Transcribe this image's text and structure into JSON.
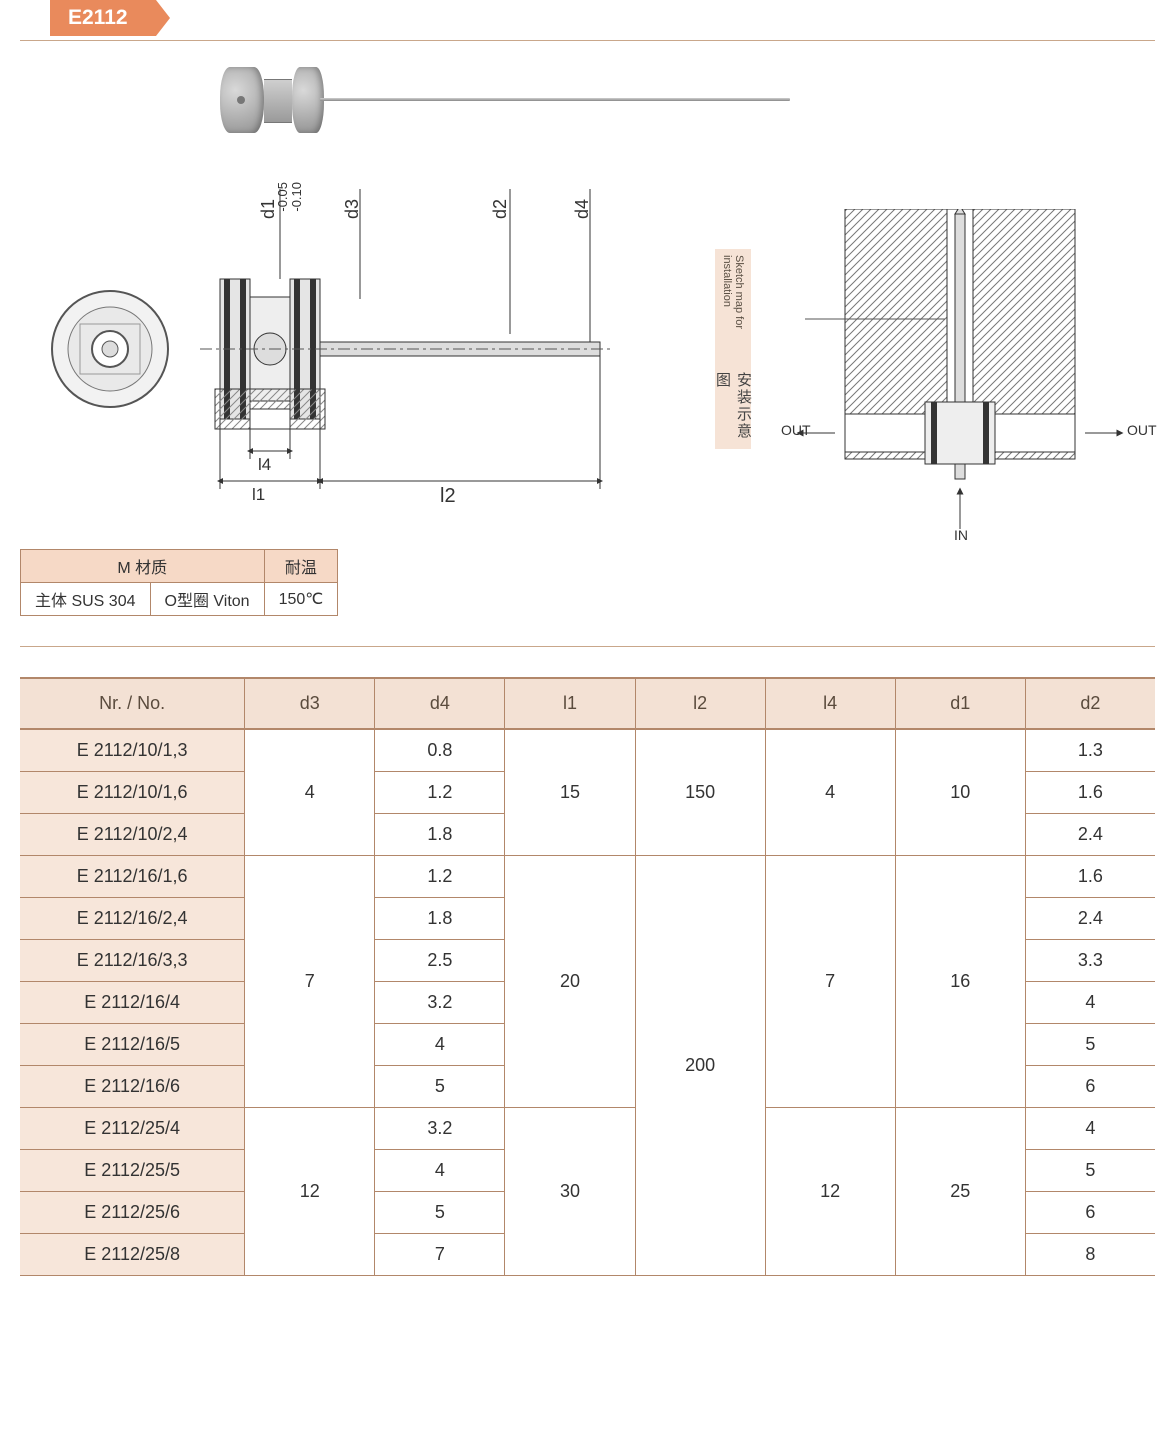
{
  "header": {
    "code": "E2112"
  },
  "dim_labels": {
    "d1": "d1",
    "d1_tol_top": "-0.05",
    "d1_tol_bot": "-0.10",
    "d2": "d2",
    "d3": "d3",
    "d4": "d4",
    "l1": "l1",
    "l2": "l2",
    "l4": "l4"
  },
  "sketch": {
    "title_cn": "安装示意图",
    "title_en": "Sketch map for installation",
    "out": "OUT",
    "in": "IN"
  },
  "material_table": {
    "hdr_material": "M 材质",
    "hdr_temp": "耐温",
    "body_label": "主体 SUS 304",
    "oring_label": "O型圈 Viton",
    "temp_value": "150℃"
  },
  "main_table": {
    "columns": [
      "Nr. / No.",
      "d3",
      "d4",
      "l1",
      "l2",
      "l4",
      "d1",
      "d2"
    ],
    "col_widths": [
      "200px",
      "110px",
      "110px",
      "110px",
      "110px",
      "110px",
      "110px",
      "110px"
    ],
    "groups": [
      {
        "d3": "4",
        "l1": "15",
        "l2": "150",
        "l4": "4",
        "d1": "10",
        "rows": [
          {
            "no": "E 2112/10/1,3",
            "d4": "0.8",
            "d2": "1.3"
          },
          {
            "no": "E 2112/10/1,6",
            "d4": "1.2",
            "d2": "1.6"
          },
          {
            "no": "E 2112/10/2,4",
            "d4": "1.8",
            "d2": "2.4"
          }
        ]
      },
      {
        "d3": "7",
        "l1": "20",
        "l2": "200",
        "l2_span_extra": 4,
        "l4": "7",
        "d1": "16",
        "rows": [
          {
            "no": "E 2112/16/1,6",
            "d4": "1.2",
            "d2": "1.6"
          },
          {
            "no": "E 2112/16/2,4",
            "d4": "1.8",
            "d2": "2.4"
          },
          {
            "no": "E 2112/16/3,3",
            "d4": "2.5",
            "d2": "3.3"
          },
          {
            "no": "E 2112/16/4",
            "d4": "3.2",
            "d2": "4"
          },
          {
            "no": "E 2112/16/5",
            "d4": "4",
            "d2": "5"
          },
          {
            "no": "E 2112/16/6",
            "d4": "5",
            "d2": "6"
          }
        ]
      },
      {
        "d3": "12",
        "l1": "30",
        "l2": null,
        "l4": "12",
        "d1": "25",
        "rows": [
          {
            "no": "E 2112/25/4",
            "d4": "3.2",
            "d2": "4"
          },
          {
            "no": "E 2112/25/5",
            "d4": "4",
            "d2": "5"
          },
          {
            "no": "E 2112/25/6",
            "d4": "5",
            "d2": "6"
          },
          {
            "no": "E 2112/25/8",
            "d4": "7",
            "d2": "8"
          }
        ]
      }
    ]
  },
  "colors": {
    "accent": "#e98a5c",
    "header_bg": "#f3e1d4",
    "partno_bg": "#f7e6da",
    "border": "#b2876a"
  }
}
